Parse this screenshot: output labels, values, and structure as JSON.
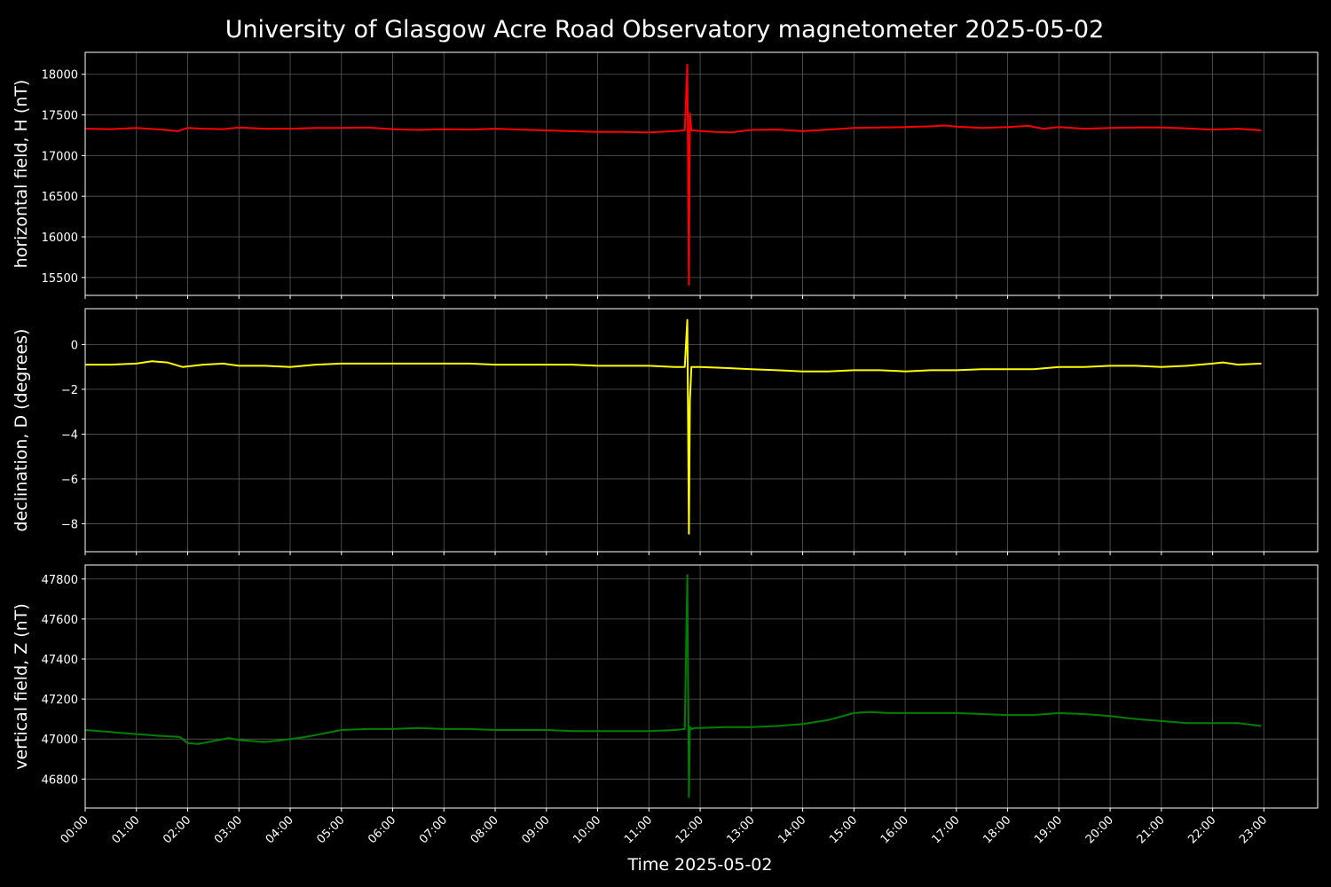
{
  "chart_data": {
    "type": "line",
    "title": "University of Glasgow Acre Road Observatory magnetometer 2025-05-02",
    "xlabel": "Time 2025-05-02",
    "x_ticks": [
      "00:00",
      "01:00",
      "02:00",
      "03:00",
      "04:00",
      "05:00",
      "06:00",
      "07:00",
      "08:00",
      "09:00",
      "10:00",
      "11:00",
      "12:00",
      "13:00",
      "14:00",
      "15:00",
      "16:00",
      "17:00",
      "18:00",
      "19:00",
      "20:00",
      "21:00",
      "22:00",
      "23:00"
    ],
    "xlim": [
      0,
      24.05
    ],
    "grid": true,
    "panels": [
      {
        "ylabel": "horizontal field, H (nT)",
        "ylim": [
          15280,
          18270
        ],
        "yticks": [
          15500,
          16000,
          16500,
          17000,
          17500,
          18000
        ],
        "ytick_labels": [
          "15500",
          "16000",
          "16500",
          "17000",
          "17500",
          "18000"
        ],
        "color": "#ff0000",
        "series": [
          {
            "x": [
              0,
              0.5,
              1.0,
              1.5,
              1.8,
              2.0,
              2.3,
              2.7,
              3.0,
              3.5,
              4.0,
              4.5,
              5.0,
              5.5,
              6.0,
              6.5,
              7.0,
              7.5,
              8.0,
              8.5,
              9.0,
              9.5,
              10.0,
              10.5,
              11.0,
              11.5,
              11.7,
              11.75,
              11.78,
              11.8,
              11.83,
              11.9,
              12.0,
              12.3,
              12.6,
              13.0,
              13.5,
              14.0,
              14.5,
              15.0,
              15.5,
              16.0,
              16.5,
              16.8,
              17.0,
              17.5,
              18.0,
              18.4,
              18.7,
              19.0,
              19.5,
              20.0,
              20.5,
              21.0,
              21.5,
              22.0,
              22.5,
              22.95
            ],
            "y": [
              17330,
              17325,
              17340,
              17320,
              17300,
              17340,
              17330,
              17325,
              17345,
              17330,
              17330,
              17340,
              17340,
              17345,
              17325,
              17315,
              17325,
              17320,
              17330,
              17320,
              17310,
              17300,
              17290,
              17290,
              17285,
              17300,
              17310,
              18120,
              15410,
              17520,
              17310,
              17310,
              17300,
              17290,
              17285,
              17315,
              17320,
              17300,
              17320,
              17340,
              17345,
              17350,
              17360,
              17370,
              17355,
              17340,
              17350,
              17365,
              17330,
              17350,
              17330,
              17340,
              17345,
              17345,
              17335,
              17320,
              17330,
              17310
            ]
          }
        ]
      },
      {
        "ylabel": "declination, D (degrees)",
        "ylim": [
          -9.25,
          1.6
        ],
        "yticks": [
          -8,
          -6,
          -4,
          -2,
          0
        ],
        "ytick_labels": [
          "−8",
          "−6",
          "−4",
          "−2",
          "0"
        ],
        "color": "#ffff00",
        "series": [
          {
            "x": [
              0,
              0.5,
              1.0,
              1.3,
              1.6,
              1.9,
              2.3,
              2.7,
              3.0,
              3.5,
              4.0,
              4.5,
              5.0,
              5.5,
              6.0,
              6.5,
              7.0,
              7.5,
              8.0,
              8.5,
              9.0,
              9.5,
              10.0,
              10.5,
              11.0,
              11.5,
              11.7,
              11.75,
              11.78,
              11.8,
              11.83,
              11.9,
              12.0,
              12.5,
              13.0,
              13.5,
              14.0,
              14.5,
              15.0,
              15.5,
              16.0,
              16.5,
              17.0,
              17.5,
              18.0,
              18.5,
              19.0,
              19.5,
              20.0,
              20.5,
              21.0,
              21.5,
              22.0,
              22.2,
              22.5,
              22.95
            ],
            "y": [
              -0.9,
              -0.9,
              -0.85,
              -0.75,
              -0.8,
              -1.0,
              -0.9,
              -0.85,
              -0.95,
              -0.95,
              -1.0,
              -0.9,
              -0.85,
              -0.85,
              -0.85,
              -0.85,
              -0.85,
              -0.85,
              -0.9,
              -0.9,
              -0.9,
              -0.9,
              -0.95,
              -0.95,
              -0.95,
              -1.0,
              -1.0,
              1.1,
              -8.45,
              -2.5,
              -1.0,
              -1.0,
              -1.0,
              -1.05,
              -1.1,
              -1.15,
              -1.2,
              -1.2,
              -1.15,
              -1.15,
              -1.2,
              -1.15,
              -1.15,
              -1.1,
              -1.1,
              -1.1,
              -1.0,
              -1.0,
              -0.95,
              -0.95,
              -1.0,
              -0.95,
              -0.85,
              -0.8,
              -0.9,
              -0.85
            ]
          }
        ]
      },
      {
        "ylabel": "vertical field, Z (nT)",
        "ylim": [
          46655,
          47870
        ],
        "yticks": [
          46800,
          47000,
          47200,
          47400,
          47600,
          47800
        ],
        "ytick_labels": [
          "46800",
          "47000",
          "47200",
          "47400",
          "47600",
          "47800"
        ],
        "color": "#008000",
        "series": [
          {
            "x": [
              0,
              0.5,
              1.0,
              1.5,
              1.85,
              2.0,
              2.2,
              2.5,
              2.8,
              3.0,
              3.5,
              4.0,
              4.3,
              4.7,
              5.0,
              5.5,
              6.0,
              6.5,
              7.0,
              7.5,
              8.0,
              8.5,
              9.0,
              9.5,
              10.0,
              10.5,
              11.0,
              11.5,
              11.7,
              11.75,
              11.78,
              11.8,
              11.83,
              11.9,
              12.0,
              12.5,
              13.0,
              13.5,
              14.0,
              14.5,
              15.0,
              15.3,
              15.7,
              16.0,
              16.5,
              17.0,
              17.5,
              18.0,
              18.5,
              19.0,
              19.5,
              20.0,
              20.5,
              21.0,
              21.5,
              22.0,
              22.5,
              22.95
            ],
            "y": [
              47045,
              47035,
              47025,
              47015,
              47010,
              46980,
              46975,
              46990,
              47005,
              46995,
              46985,
              47000,
              47010,
              47030,
              47045,
              47050,
              47050,
              47055,
              47050,
              47050,
              47045,
              47045,
              47045,
              47040,
              47040,
              47040,
              47040,
              47045,
              47050,
              47820,
              46710,
              47060,
              47050,
              47055,
              47055,
              47060,
              47060,
              47065,
              47075,
              47095,
              47130,
              47135,
              47130,
              47130,
              47130,
              47130,
              47125,
              47120,
              47120,
              47130,
              47125,
              47115,
              47100,
              47090,
              47080,
              47080,
              47080,
              47065
            ]
          }
        ]
      }
    ]
  }
}
